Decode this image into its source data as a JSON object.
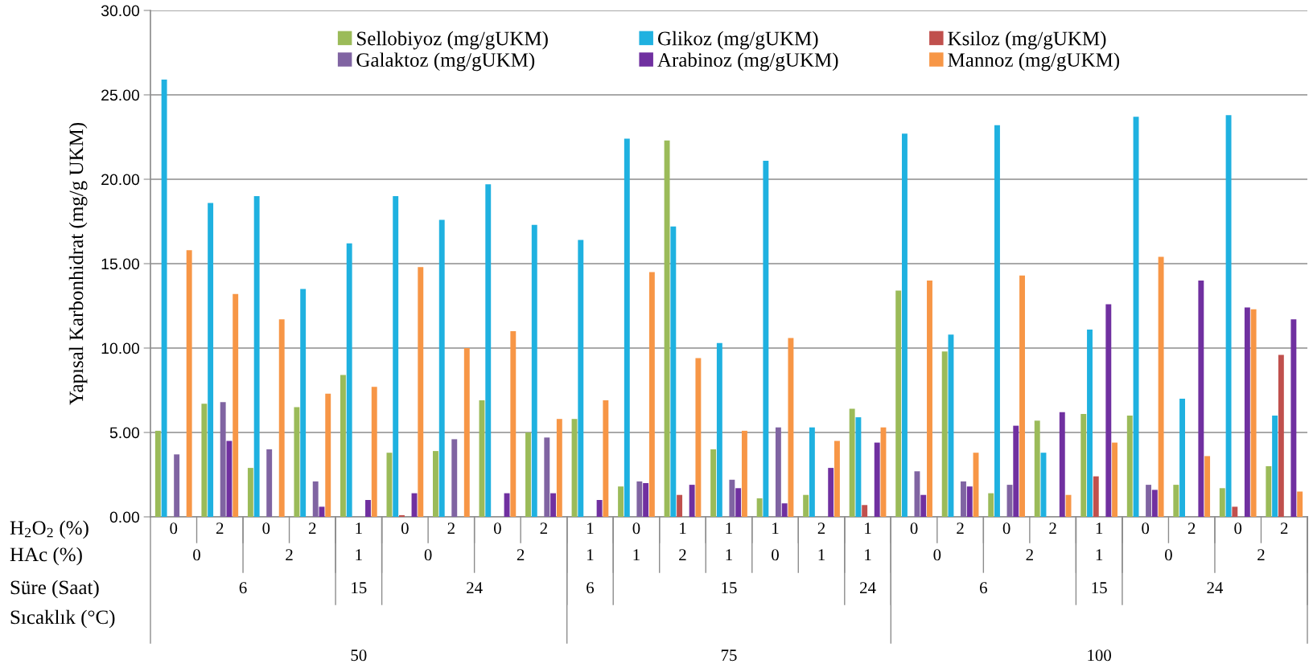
{
  "chart_data": {
    "type": "bar",
    "ylabel": "Yapısal Karbonhidrat (mg/g UKM)",
    "categories": [
      "0",
      "2",
      "0",
      "2",
      "1",
      "0",
      "2",
      "0",
      "2",
      "1",
      "0",
      "1",
      "1",
      "1",
      "2",
      "1",
      "0",
      "2",
      "0",
      "2",
      "1",
      "0",
      "2",
      "0",
      "2"
    ],
    "annotations": [
      "H$_{2}$O$_{2}$ (%)",
      "HAc (%)",
      "Süre (Saat)",
      "Sıcaklık (°C)",
      "0",
      "2",
      "1",
      "0",
      "2",
      "1",
      "1",
      "2",
      "1",
      "0",
      "1",
      "1",
      "0",
      "2",
      "1",
      "0",
      "2",
      "6",
      "15",
      "24",
      "6",
      "15",
      "24",
      "6",
      "15",
      "24",
      "50",
      "75",
      "100"
    ],
    "series": [
      {
        "name": "Sellobiyoz (mg/gUKM)",
        "color": "#9bbb59",
        "values": [
          5.1,
          6.7,
          2.9,
          6.5,
          8.4,
          3.8,
          3.9,
          6.9,
          5.0,
          5.8,
          1.8,
          22.3,
          4.0,
          1.1,
          1.3,
          6.4,
          13.4,
          9.8,
          1.4,
          5.7,
          6.1,
          6.0,
          1.9,
          1.7,
          3.0
        ]
      },
      {
        "name": "Glikoz (mg/gUKM)",
        "color": "#1fb1e0",
        "values": [
          25.9,
          18.6,
          19.0,
          13.5,
          16.2,
          19.0,
          17.6,
          19.7,
          17.3,
          16.4,
          22.4,
          17.2,
          10.3,
          21.1,
          5.3,
          5.9,
          22.7,
          10.8,
          23.2,
          3.8,
          11.1,
          23.7,
          7.0,
          23.8,
          6.0
        ]
      },
      {
        "name": "Ksiloz (mg/gUKM)",
        "color": "#c0504d",
        "values": [
          0,
          0,
          0,
          0,
          0,
          0.1,
          0,
          0,
          0,
          0,
          0,
          1.3,
          0,
          0,
          0,
          0.7,
          0,
          0,
          0,
          0,
          2.4,
          0,
          0,
          0.6,
          9.6
        ]
      },
      {
        "name": "Galaktoz (mg/gUKM)",
        "color": "#8064a2",
        "values": [
          3.7,
          6.8,
          4.0,
          2.1,
          0,
          0,
          4.6,
          0,
          4.7,
          0,
          2.1,
          0,
          2.2,
          5.3,
          0,
          0,
          2.7,
          2.1,
          1.9,
          0,
          0,
          1.9,
          0,
          0,
          0
        ]
      },
      {
        "name": "Arabinoz (mg/gUKM)",
        "color": "#7030a0",
        "values": [
          0,
          4.5,
          0,
          0.6,
          1.0,
          1.4,
          0,
          1.4,
          1.4,
          1.0,
          2.0,
          1.9,
          1.7,
          0.8,
          2.9,
          4.4,
          1.3,
          1.8,
          5.4,
          6.2,
          12.6,
          1.6,
          14.0,
          12.4,
          11.7
        ]
      },
      {
        "name": "Mannoz (mg/gUKM)",
        "color": "#f79646",
        "values": [
          15.8,
          13.2,
          11.7,
          7.3,
          7.7,
          14.8,
          10.0,
          11.0,
          5.8,
          6.9,
          14.5,
          9.4,
          5.1,
          10.6,
          4.5,
          5.3,
          14.0,
          3.8,
          14.3,
          1.3,
          4.4,
          15.4,
          3.6,
          12.3,
          1.5
        ]
      }
    ],
    "ylim": [
      0,
      30
    ],
    "yticks": [
      {
        "value": 0,
        "label": "0.00"
      },
      {
        "value": 5,
        "label": "5.00"
      },
      {
        "value": 10,
        "label": "10.00"
      },
      {
        "value": 15,
        "label": "15.00"
      },
      {
        "value": 20,
        "label": "20.00"
      },
      {
        "value": 25,
        "label": "25.00"
      },
      {
        "value": 30,
        "label": "30.00"
      }
    ],
    "grid": "y",
    "legend": "top"
  }
}
